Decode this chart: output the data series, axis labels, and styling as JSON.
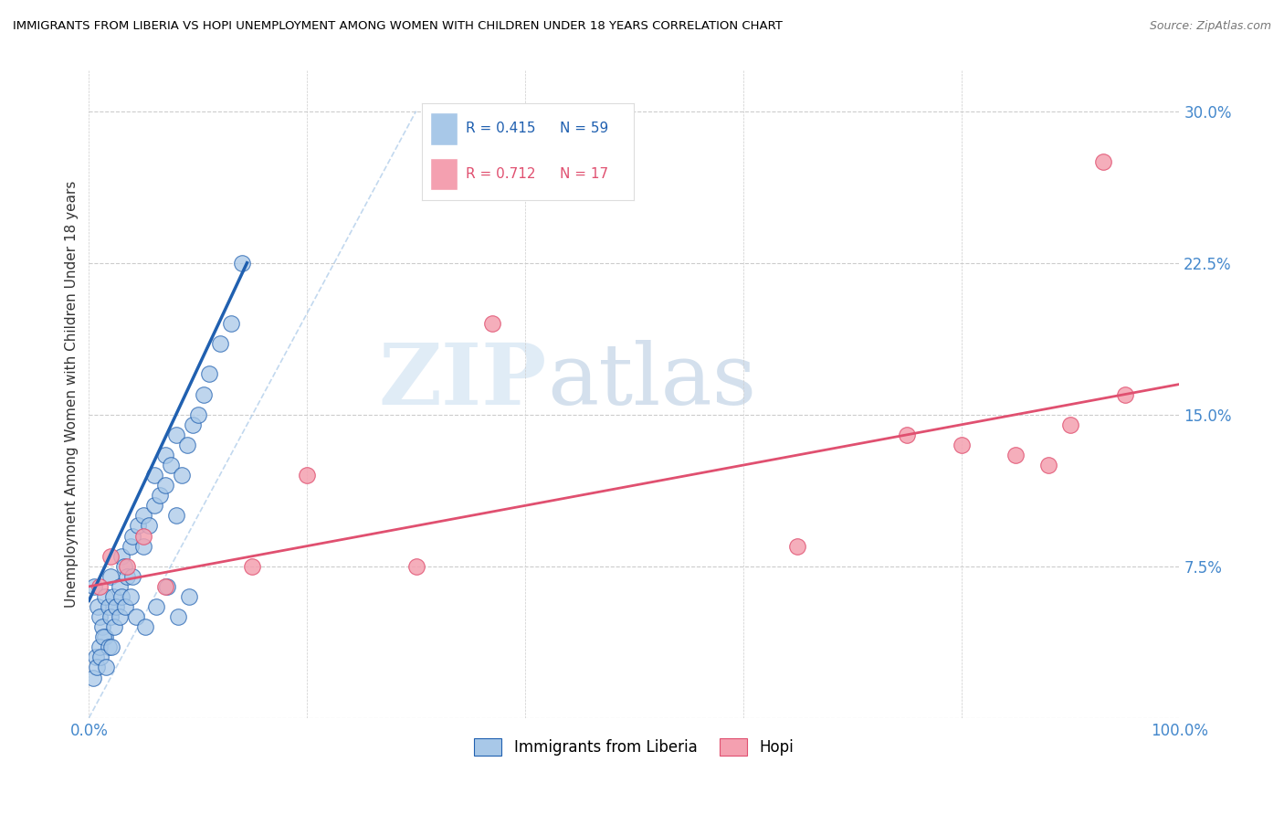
{
  "title": "IMMIGRANTS FROM LIBERIA VS HOPI UNEMPLOYMENT AMONG WOMEN WITH CHILDREN UNDER 18 YEARS CORRELATION CHART",
  "source": "Source: ZipAtlas.com",
  "ylabel": "Unemployment Among Women with Children Under 18 years",
  "xlim": [
    0,
    100
  ],
  "ylim": [
    0,
    32
  ],
  "yticks": [
    0,
    7.5,
    15.0,
    22.5,
    30.0
  ],
  "xticks": [
    0,
    20,
    40,
    60,
    80,
    100
  ],
  "blue_color": "#a8c8e8",
  "pink_color": "#f4a0b0",
  "blue_line_color": "#2060b0",
  "pink_line_color": "#e05070",
  "ref_line_color": "#a8c8e8",
  "watermark_zip": "ZIP",
  "watermark_atlas": "atlas",
  "blue_scatter_x": [
    0.5,
    0.8,
    1.0,
    1.2,
    1.5,
    1.5,
    1.8,
    2.0,
    2.0,
    2.2,
    2.5,
    2.8,
    3.0,
    3.0,
    3.2,
    3.5,
    3.8,
    4.0,
    4.0,
    4.5,
    5.0,
    5.0,
    5.5,
    6.0,
    6.0,
    6.5,
    7.0,
    7.0,
    7.5,
    8.0,
    8.0,
    8.5,
    9.0,
    9.5,
    10.0,
    10.5,
    11.0,
    12.0,
    13.0,
    14.0,
    0.6,
    1.0,
    1.3,
    1.8,
    2.3,
    2.8,
    3.3,
    3.8,
    4.3,
    5.2,
    6.2,
    7.2,
    8.2,
    9.2,
    0.4,
    0.7,
    1.1,
    1.6,
    2.1
  ],
  "blue_scatter_y": [
    6.5,
    5.5,
    5.0,
    4.5,
    4.0,
    6.0,
    5.5,
    5.0,
    7.0,
    6.0,
    5.5,
    6.5,
    6.0,
    8.0,
    7.5,
    7.0,
    8.5,
    7.0,
    9.0,
    9.5,
    8.5,
    10.0,
    9.5,
    10.5,
    12.0,
    11.0,
    11.5,
    13.0,
    12.5,
    10.0,
    14.0,
    12.0,
    13.5,
    14.5,
    15.0,
    16.0,
    17.0,
    18.5,
    19.5,
    22.5,
    3.0,
    3.5,
    4.0,
    3.5,
    4.5,
    5.0,
    5.5,
    6.0,
    5.0,
    4.5,
    5.5,
    6.5,
    5.0,
    6.0,
    2.0,
    2.5,
    3.0,
    2.5,
    3.5
  ],
  "pink_scatter_x": [
    1.0,
    2.0,
    3.5,
    5.0,
    7.0,
    15.0,
    20.0,
    30.0,
    37.0,
    65.0,
    75.0,
    80.0,
    85.0,
    88.0,
    90.0,
    93.0,
    95.0
  ],
  "pink_scatter_y": [
    6.5,
    8.0,
    7.5,
    9.0,
    6.5,
    7.5,
    12.0,
    7.5,
    19.5,
    8.5,
    14.0,
    13.5,
    13.0,
    12.5,
    14.5,
    27.5,
    16.0
  ],
  "blue_trend_x0": 0.0,
  "blue_trend_y0": 5.8,
  "blue_trend_x1": 14.5,
  "blue_trend_y1": 22.5,
  "pink_trend_x0": 0.0,
  "pink_trend_y0": 6.5,
  "pink_trend_x1": 100.0,
  "pink_trend_y1": 16.5,
  "ref_x0": 0,
  "ref_y0": 0,
  "ref_x1": 30,
  "ref_y1": 30
}
